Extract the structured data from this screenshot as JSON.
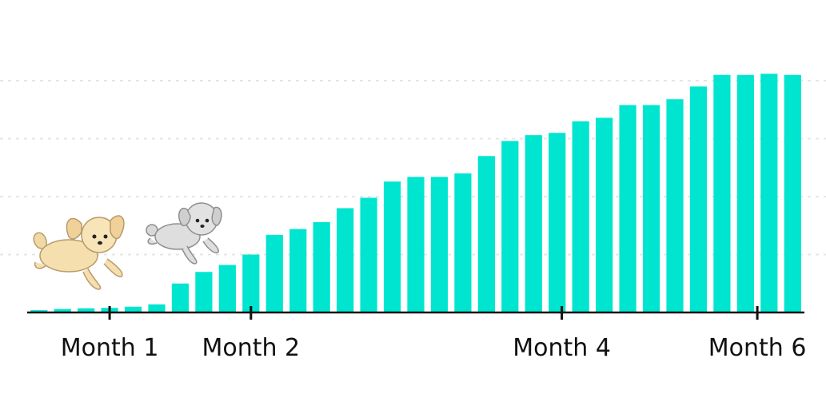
{
  "chart_data": {
    "type": "bar",
    "title": "",
    "xlabel": "",
    "ylabel": "",
    "ylim": [
      0,
      100
    ],
    "grid": true,
    "bar_color": "#00e5cf",
    "grid_color": "#e6e6e6",
    "axis_color": "#111111",
    "values": [
      1,
      1.5,
      1.8,
      2,
      2.5,
      3.5,
      12.5,
      17.5,
      20.5,
      25,
      33.5,
      36,
      39,
      45,
      49.5,
      56.5,
      58.5,
      58.5,
      60,
      67.5,
      74,
      76.5,
      77.5,
      82.5,
      84,
      89.5,
      89.5,
      92,
      97.5,
      102.5,
      102.5,
      103,
      102.5
    ],
    "ticks": [
      {
        "label": "Month 1",
        "index": 3
      },
      {
        "label": "Month 2",
        "index": 9
      },
      {
        "label": "Month 4",
        "index": 22.2
      },
      {
        "label": "Month 6",
        "index": 30.5
      }
    ],
    "illustrations": [
      {
        "name": "cream-puppy-illustration",
        "color": "#f5dfae"
      },
      {
        "name": "gray-puppy-illustration",
        "color": "#d8d8d8"
      }
    ]
  }
}
